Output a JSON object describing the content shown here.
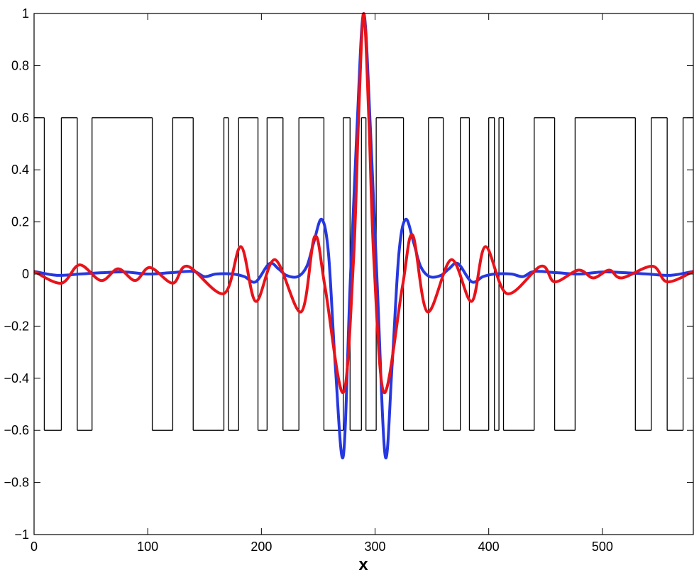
{
  "chart_data": {
    "type": "line",
    "xlabel": "x",
    "xlim": [
      0,
      580
    ],
    "xticks": [
      0,
      100,
      200,
      300,
      400,
      500
    ],
    "ylim": [
      -1,
      1
    ],
    "yticks": [
      {
        "value": -1,
        "label": "−1"
      },
      {
        "value": -0.8,
        "label": "−0.8"
      },
      {
        "value": -0.6,
        "label": "−0.6"
      },
      {
        "value": -0.4,
        "label": "−0.4"
      },
      {
        "value": -0.2,
        "label": "−0.2"
      },
      0,
      0.2,
      0.4,
      0.6,
      0.8,
      1
    ],
    "grid": false,
    "series": [
      {
        "color": "#000000",
        "step": "post",
        "x": [
          0,
          9,
          24,
          38,
          51,
          104,
          122,
          140,
          167,
          171,
          180,
          197,
          205,
          219,
          233,
          255,
          272,
          278,
          288,
          292,
          301,
          325,
          347,
          360,
          375,
          383,
          400,
          405,
          409,
          413,
          440,
          458,
          476,
          529,
          543,
          557,
          571
        ],
        "values": [
          0.6,
          -0.6,
          0.6,
          -0.6,
          0.6,
          -0.6,
          0.6,
          -0.6,
          0.6,
          -0.6,
          0.6,
          -0.6,
          0.6,
          -0.6,
          0.6,
          -0.6,
          0.6,
          -0.6,
          0.6,
          -0.6,
          0.6,
          -0.6,
          0.6,
          -0.6,
          0.6,
          -0.6,
          0.6,
          -0.6,
          0.6,
          -0.6,
          0.6,
          -0.6,
          0.6,
          -0.6,
          0.6,
          -0.6,
          0.6
        ]
      },
      {
        "color": "#2638e0",
        "x": [
          0,
          20,
          40,
          60,
          80,
          100,
          120,
          140,
          150,
          160,
          175,
          185,
          195,
          207,
          215,
          222,
          232,
          240,
          246,
          253,
          259,
          265,
          272,
          278,
          284,
          290,
          296,
          302,
          309,
          315,
          321,
          327,
          334,
          340,
          348,
          358,
          365,
          373,
          385,
          395,
          405,
          420,
          430,
          440,
          460,
          480,
          500,
          520,
          540,
          560,
          580
        ],
        "values": [
          0.01,
          -0.005,
          0,
          0.005,
          0.008,
          0,
          0.005,
          0.01,
          -0.01,
          0,
          0,
          -0.01,
          -0.03,
          0.04,
          0.02,
          -0.005,
          -0.01,
          0.03,
          0.12,
          0.21,
          0.08,
          -0.35,
          -0.7,
          -0.05,
          0.55,
          1,
          0.55,
          -0.05,
          -0.7,
          -0.35,
          0.08,
          0.21,
          0.12,
          0.03,
          -0.01,
          -0.005,
          0.02,
          0.04,
          -0.03,
          -0.01,
          0,
          0,
          -0.01,
          0.01,
          0.005,
          0,
          0.008,
          0.005,
          0,
          -0.005,
          0.01
        ]
      },
      {
        "color": "#e8131a",
        "x": [
          0,
          24,
          40,
          59,
          74,
          89,
          102,
          122,
          135,
          167,
          182,
          195,
          212,
          235,
          247,
          256,
          272,
          281,
          285.5,
          290,
          294.5,
          299,
          308,
          324,
          333,
          346,
          367,
          385,
          397,
          416,
          446,
          458,
          479,
          492,
          506,
          517,
          544,
          557,
          580
        ],
        "values": [
          0.01,
          -0.035,
          0.035,
          -0.025,
          0.02,
          -0.025,
          0.025,
          -0.035,
          0.03,
          -0.075,
          0.105,
          -0.105,
          0.055,
          -0.145,
          0.145,
          -0.05,
          -0.455,
          0.05,
          0.6,
          1,
          0.6,
          0.05,
          -0.455,
          -0.05,
          0.15,
          -0.145,
          0.055,
          -0.105,
          0.105,
          -0.075,
          0.03,
          -0.03,
          0.015,
          -0.015,
          0.015,
          -0.015,
          0.03,
          -0.03,
          0.01
        ]
      }
    ]
  }
}
